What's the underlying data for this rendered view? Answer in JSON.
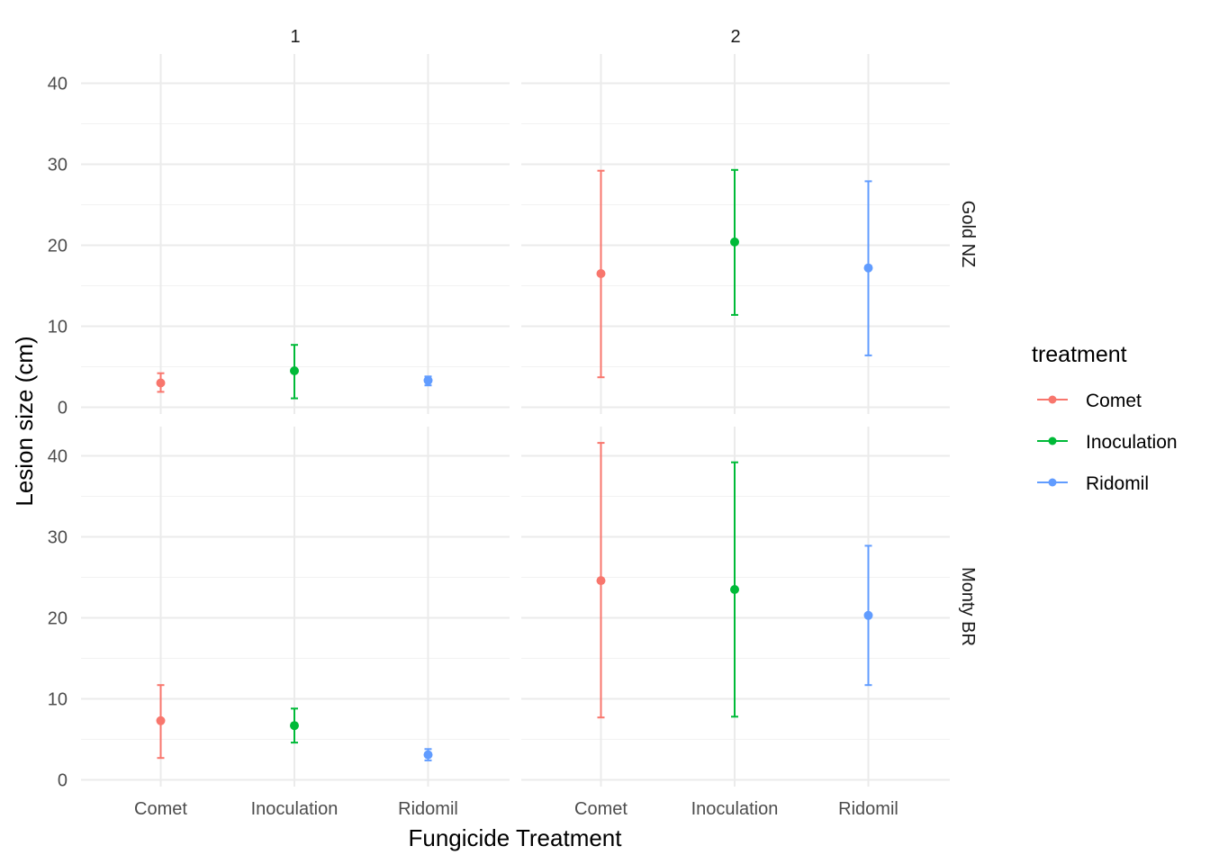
{
  "chart_data": {
    "type": "scatter",
    "subtype": "point-errorbar-faceted",
    "xlabel": "Fungicide Treatment",
    "ylabel": "Lesion size (cm)",
    "categories": [
      "Comet",
      "Inoculation",
      "Ridomil"
    ],
    "ylim": [
      0,
      43
    ],
    "yticks": [
      "0",
      "10",
      "20",
      "30",
      "40"
    ],
    "grid": true,
    "legend": {
      "title": "treatment",
      "position": "right",
      "entries": [
        {
          "label": "Comet",
          "color": "#F8766D"
        },
        {
          "label": "Inoculation",
          "color": "#00BA38"
        },
        {
          "label": "Ridomil",
          "color": "#619CFF"
        }
      ]
    },
    "facet_cols": [
      "1",
      "2"
    ],
    "facet_rows": [
      "Gold NZ",
      "Monty BR"
    ],
    "panels": [
      {
        "row": "Gold NZ",
        "col": "1",
        "points": [
          {
            "category": "Comet",
            "y": 3.0,
            "ymin": 1.9,
            "ymax": 4.2
          },
          {
            "category": "Inoculation",
            "y": 4.5,
            "ymin": 1.1,
            "ymax": 7.7
          },
          {
            "category": "Ridomil",
            "y": 3.3,
            "ymin": 2.7,
            "ymax": 3.8
          }
        ]
      },
      {
        "row": "Gold NZ",
        "col": "2",
        "points": [
          {
            "category": "Comet",
            "y": 16.5,
            "ymin": 3.7,
            "ymax": 29.2
          },
          {
            "category": "Inoculation",
            "y": 20.4,
            "ymin": 11.4,
            "ymax": 29.3
          },
          {
            "category": "Ridomil",
            "y": 17.2,
            "ymin": 6.4,
            "ymax": 27.9
          }
        ]
      },
      {
        "row": "Monty BR",
        "col": "1",
        "points": [
          {
            "category": "Comet",
            "y": 7.3,
            "ymin": 2.7,
            "ymax": 11.7
          },
          {
            "category": "Inoculation",
            "y": 6.7,
            "ymin": 4.6,
            "ymax": 8.8
          },
          {
            "category": "Ridomil",
            "y": 3.1,
            "ymin": 2.4,
            "ymax": 3.8
          }
        ]
      },
      {
        "row": "Monty BR",
        "col": "2",
        "points": [
          {
            "category": "Comet",
            "y": 24.6,
            "ymin": 7.7,
            "ymax": 41.6
          },
          {
            "category": "Inoculation",
            "y": 23.5,
            "ymin": 7.8,
            "ymax": 39.2
          },
          {
            "category": "Ridomil",
            "y": 20.3,
            "ymin": 11.7,
            "ymax": 28.9
          }
        ]
      }
    ]
  }
}
